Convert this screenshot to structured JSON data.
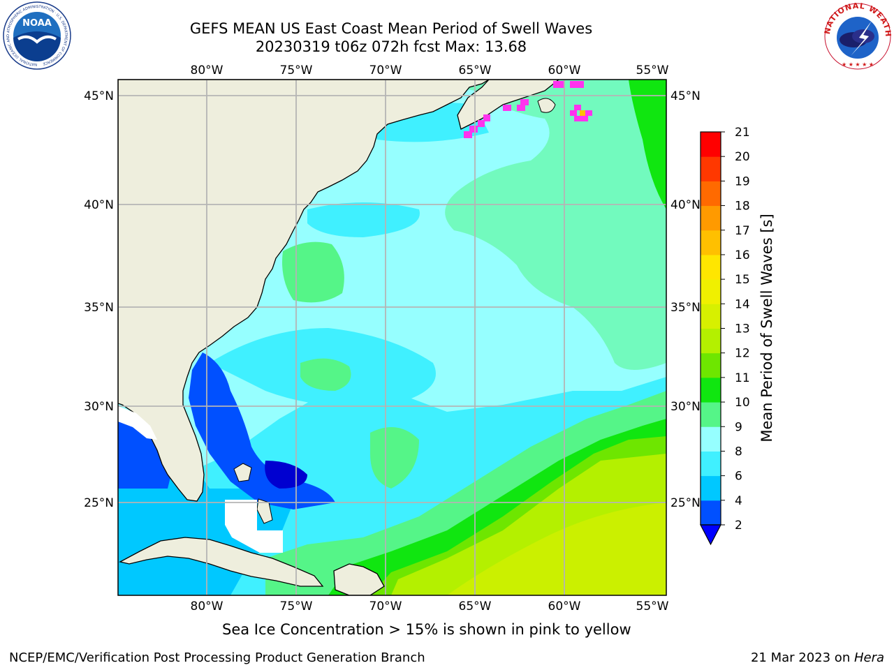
{
  "title": {
    "line1": "GEFS MEAN US East Coast Mean Period of Swell Waves",
    "line2": "20230319 t06z 072h fcst   Max: 13.68"
  },
  "map": {
    "lon_labels": [
      "80°W",
      "75°W",
      "70°W",
      "65°W",
      "60°W",
      "55°W"
    ],
    "lat_labels": [
      "45°N",
      "40°N",
      "35°N",
      "30°N",
      "25°N"
    ],
    "lon_range": [
      -85,
      -54.3
    ],
    "lat_range": [
      20.5,
      45.8
    ]
  },
  "colorbar": {
    "label": "Mean Period of Swell Waves [s]",
    "ticks": [
      "2",
      "4",
      "6",
      "8",
      "9",
      "10",
      "11",
      "12",
      "13",
      "14",
      "15",
      "16",
      "17",
      "18",
      "19",
      "20",
      "21"
    ],
    "colors": [
      "#0050ff",
      "#00c8ff",
      "#40f0ff",
      "#96ffff",
      "#55f588",
      "#10e610",
      "#6ee600",
      "#b4f000",
      "#d7f000",
      "#f0f000",
      "#ffe600",
      "#ffc000",
      "#ff9a00",
      "#ff6a00",
      "#ff3800",
      "#ff0000"
    ],
    "under_color": "#0000ff"
  },
  "note": "Sea Ice Concentration > 15% is shown in pink to yellow",
  "footer": {
    "left": "NCEP/EMC/Verification Post Processing Product Generation Branch",
    "right_date": "21 Mar 2023 on ",
    "right_machine": "Hera"
  },
  "logos": {
    "noaa_text": "NOAA",
    "noaa_ring": "NATIONAL OCEANIC AND ATMOSPHERIC ADMINISTRATION · U.S. DEPARTMENT OF COMMERCE",
    "nws_ring": "NATIONAL WEATHER SERVICE"
  },
  "colors": {
    "land": "#eeeedd",
    "grid": "#b4b4b4",
    "ice": "#ff33ee"
  }
}
